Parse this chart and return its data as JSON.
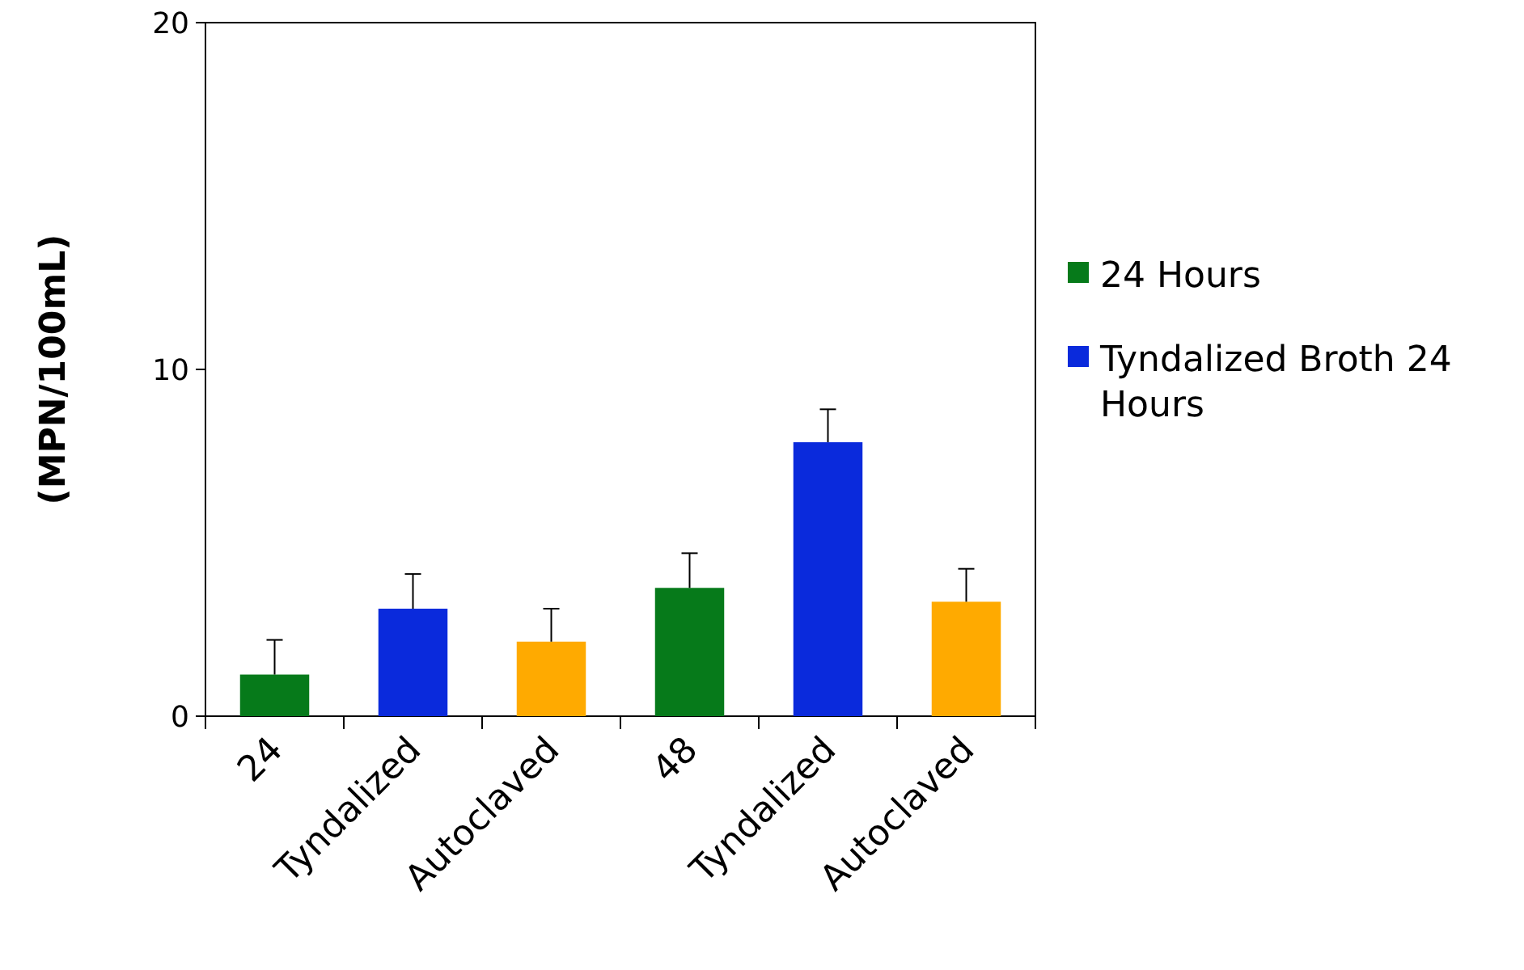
{
  "chart_data": {
    "type": "bar",
    "ylabel": "(MPN/100mL)",
    "categories": [
      "24",
      "Tyndalized",
      "Autoclaved",
      "48",
      "Tyndalized",
      "Autoclaved"
    ],
    "series": [
      {
        "name": "24 Hours",
        "color": "#067a1a",
        "values": [
          1.2,
          null,
          null,
          3.7,
          null,
          null
        ],
        "errors": [
          [
            1.2,
            2.2
          ],
          null,
          null,
          [
            3.7,
            4.7
          ],
          null,
          null
        ]
      },
      {
        "name": "Tyndalized Broth 24 Hours",
        "color": "#0a2adc",
        "values": [
          null,
          3.1,
          null,
          null,
          7.9,
          null
        ],
        "errors": [
          null,
          [
            3.1,
            4.1
          ],
          null,
          null,
          [
            7.9,
            8.85
          ],
          null
        ]
      },
      {
        "color": "#ffaa00",
        "values": [
          null,
          null,
          2.15,
          null,
          null,
          3.3
        ],
        "errors": [
          null,
          null,
          [
            2.15,
            3.1
          ],
          null,
          null,
          [
            3.3,
            4.25
          ]
        ]
      }
    ],
    "ylim": [
      0,
      20
    ],
    "yticks": [
      0,
      10,
      20
    ],
    "grid": false,
    "legend": "right"
  }
}
